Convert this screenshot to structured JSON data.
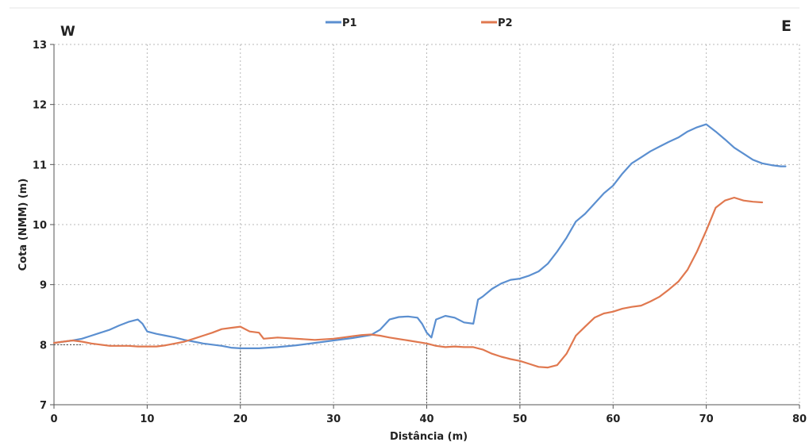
{
  "chart_data": {
    "type": "line",
    "title": "",
    "xlabel": "Distância (m)",
    "ylabel": "Cota (NMM) (m)",
    "xlim": [
      0,
      80
    ],
    "ylim": [
      7,
      13
    ],
    "x_ticks": [
      "0",
      "10",
      "20",
      "30",
      "40",
      "50",
      "60",
      "70",
      "80"
    ],
    "y_ticks": [
      "7",
      "8",
      "9",
      "10",
      "11",
      "12",
      "13"
    ],
    "grid": true,
    "legend_position": "top-center",
    "direction_labels": {
      "left": "W",
      "right": "E"
    },
    "series": [
      {
        "name": "P1",
        "color": "#5b8fd0",
        "x": [
          0,
          2,
          3,
          4,
          5,
          6,
          7,
          8,
          9,
          9.5,
          10,
          11,
          12,
          13,
          14,
          15,
          16,
          18,
          19,
          20,
          22,
          24,
          26,
          28,
          30,
          32,
          34,
          35,
          36,
          37,
          38,
          39,
          39.5,
          40,
          40.5,
          41,
          42,
          43,
          44,
          45,
          45.5,
          46,
          47,
          48,
          49,
          50,
          51,
          52,
          53,
          54,
          55,
          56,
          57,
          58,
          59,
          60,
          61,
          62,
          63,
          64,
          65,
          66,
          67,
          68,
          69,
          70,
          71,
          72,
          73,
          74,
          75,
          76,
          77,
          78,
          78.5
        ],
        "y": [
          8.03,
          8.07,
          8.1,
          8.15,
          8.2,
          8.25,
          8.32,
          8.38,
          8.42,
          8.35,
          8.22,
          8.18,
          8.15,
          8.12,
          8.08,
          8.05,
          8.02,
          7.98,
          7.95,
          7.94,
          7.94,
          7.96,
          7.99,
          8.03,
          8.07,
          8.11,
          8.16,
          8.25,
          8.42,
          8.46,
          8.47,
          8.45,
          8.35,
          8.2,
          8.12,
          8.42,
          8.48,
          8.45,
          8.37,
          8.35,
          8.75,
          8.8,
          8.93,
          9.02,
          9.08,
          9.1,
          9.15,
          9.22,
          9.35,
          9.55,
          9.78,
          10.05,
          10.18,
          10.35,
          10.52,
          10.65,
          10.85,
          11.02,
          11.12,
          11.22,
          11.3,
          11.38,
          11.45,
          11.55,
          11.62,
          11.67,
          11.55,
          11.42,
          11.28,
          11.18,
          11.08,
          11.02,
          10.99,
          10.97,
          10.97
        ]
      },
      {
        "name": "P2",
        "color": "#e0784f",
        "x": [
          0,
          1,
          2,
          3,
          4,
          5,
          6,
          7,
          8,
          9,
          10,
          11,
          12,
          13,
          14,
          15,
          16,
          17,
          18,
          19,
          20,
          21,
          22,
          22.5,
          24,
          26,
          28,
          30,
          31,
          32,
          33,
          34,
          35,
          36,
          38,
          40,
          41,
          42,
          43,
          44,
          45,
          46,
          47,
          48,
          49,
          50,
          51,
          52,
          53,
          54,
          55,
          56,
          57,
          58,
          59,
          60,
          61,
          62,
          63,
          64,
          65,
          66,
          67,
          68,
          69,
          70,
          71,
          72,
          73,
          74,
          75,
          76
        ],
        "y": [
          8.03,
          8.05,
          8.07,
          8.05,
          8.02,
          8.0,
          7.98,
          7.98,
          7.98,
          7.97,
          7.97,
          7.97,
          7.99,
          8.02,
          8.05,
          8.1,
          8.15,
          8.2,
          8.26,
          8.28,
          8.3,
          8.22,
          8.2,
          8.1,
          8.12,
          8.1,
          8.08,
          8.1,
          8.12,
          8.14,
          8.16,
          8.17,
          8.15,
          8.12,
          8.07,
          8.02,
          7.98,
          7.96,
          7.97,
          7.96,
          7.96,
          7.92,
          7.85,
          7.8,
          7.76,
          7.73,
          7.68,
          7.63,
          7.62,
          7.66,
          7.85,
          8.15,
          8.3,
          8.45,
          8.52,
          8.55,
          8.6,
          8.63,
          8.65,
          8.72,
          8.8,
          8.92,
          9.05,
          9.25,
          9.55,
          9.9,
          10.28,
          10.4,
          10.45,
          10.4,
          10.38,
          10.37
        ]
      }
    ]
  }
}
